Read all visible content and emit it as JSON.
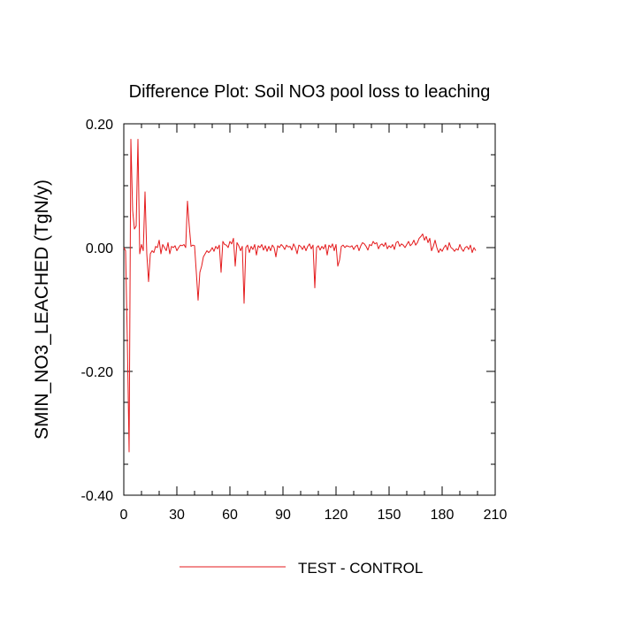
{
  "chart_data": {
    "type": "line",
    "title": "Difference Plot: Soil NO3 pool loss to leaching",
    "xlabel": "",
    "ylabel": "SMIN_NO3_LEACHED  (TgN/y)",
    "xlim": [
      0,
      210
    ],
    "ylim": [
      -0.4,
      0.2
    ],
    "xticks": [
      0,
      30,
      60,
      90,
      120,
      150,
      180,
      210
    ],
    "xtick_labels": [
      "0",
      "30",
      "60",
      "90",
      "120",
      "150",
      "180",
      "210"
    ],
    "yticks": [
      -0.4,
      -0.2,
      0.0,
      0.2
    ],
    "ytick_labels": [
      "-0.40",
      "-0.20",
      "0.00",
      "0.20"
    ],
    "grid": false,
    "legend_position": "bottom-center",
    "series": [
      {
        "name": "TEST - CONTROL",
        "color": "#e41a1c",
        "points": [
          [
            0,
            0.0
          ],
          [
            1,
            -0.005
          ],
          [
            2,
            -0.15
          ],
          [
            3,
            -0.33
          ],
          [
            4,
            0.175
          ],
          [
            5,
            0.06
          ],
          [
            6,
            0.03
          ],
          [
            7,
            0.035
          ],
          [
            8,
            0.175
          ],
          [
            9,
            -0.01
          ],
          [
            10,
            0.005
          ],
          [
            11,
            -0.005
          ],
          [
            12,
            0.09
          ],
          [
            13,
            -0.01
          ],
          [
            14,
            -0.055
          ],
          [
            15,
            -0.01
          ],
          [
            16,
            -0.005
          ],
          [
            17,
            -0.008
          ],
          [
            18,
            0.002
          ],
          [
            19,
            0.0
          ],
          [
            20,
            0.012
          ],
          [
            21,
            -0.01
          ],
          [
            22,
            0.005
          ],
          [
            23,
            0.0
          ],
          [
            24,
            -0.005
          ],
          [
            25,
            0.008
          ],
          [
            26,
            -0.01
          ],
          [
            27,
            0.002
          ],
          [
            28,
            0.0
          ],
          [
            29,
            0.003
          ],
          [
            30,
            -0.005
          ],
          [
            31,
            0.0
          ],
          [
            32,
            0.004
          ],
          [
            33,
            0.003
          ],
          [
            34,
            0.005
          ],
          [
            35,
            0.0
          ],
          [
            36,
            0.075
          ],
          [
            37,
            0.035
          ],
          [
            38,
            0.002
          ],
          [
            39,
            0.004
          ],
          [
            40,
            0.003
          ],
          [
            41,
            -0.04
          ],
          [
            42,
            -0.085
          ],
          [
            43,
            -0.04
          ],
          [
            44,
            -0.03
          ],
          [
            45,
            -0.015
          ],
          [
            46,
            -0.01
          ],
          [
            47,
            -0.005
          ],
          [
            48,
            -0.008
          ],
          [
            49,
            -0.005
          ],
          [
            50,
            0.0
          ],
          [
            51,
            -0.006
          ],
          [
            52,
            0.002
          ],
          [
            53,
            -0.002
          ],
          [
            54,
            0.004
          ],
          [
            55,
            -0.04
          ],
          [
            56,
            0.01
          ],
          [
            57,
            0.005
          ],
          [
            58,
            0.004
          ],
          [
            59,
            0.0
          ],
          [
            60,
            0.01
          ],
          [
            61,
            0.006
          ],
          [
            62,
            0.015
          ],
          [
            63,
            -0.03
          ],
          [
            64,
            0.008
          ],
          [
            65,
            0.003
          ],
          [
            66,
            -0.005
          ],
          [
            67,
            0.002
          ],
          [
            68,
            -0.09
          ],
          [
            69,
            0.0
          ],
          [
            70,
            0.004
          ],
          [
            71,
            -0.008
          ],
          [
            72,
            0.002
          ],
          [
            73,
            -0.003
          ],
          [
            74,
            0.005
          ],
          [
            75,
            -0.012
          ],
          [
            76,
            0.003
          ],
          [
            77,
            0.0
          ],
          [
            78,
            0.005
          ],
          [
            79,
            -0.004
          ],
          [
            80,
            0.003
          ],
          [
            81,
            -0.006
          ],
          [
            82,
            0.002
          ],
          [
            83,
            -0.005
          ],
          [
            84,
            0.004
          ],
          [
            85,
            0.0
          ],
          [
            86,
            -0.015
          ],
          [
            87,
            0.003
          ],
          [
            88,
            0.0
          ],
          [
            89,
            0.005
          ],
          [
            90,
            0.002
          ],
          [
            91,
            -0.003
          ],
          [
            92,
            0.004
          ],
          [
            93,
            0.001
          ],
          [
            94,
            0.002
          ],
          [
            95,
            -0.004
          ],
          [
            96,
            0.006
          ],
          [
            97,
            0.0
          ],
          [
            98,
            -0.01
          ],
          [
            99,
            0.004
          ],
          [
            100,
            0.002
          ],
          [
            101,
            -0.003
          ],
          [
            102,
            0.003
          ],
          [
            103,
            -0.005
          ],
          [
            104,
            0.002
          ],
          [
            105,
            0.006
          ],
          [
            106,
            -0.002
          ],
          [
            107,
            0.004
          ],
          [
            108,
            -0.065
          ],
          [
            109,
            0.0
          ],
          [
            110,
            0.003
          ],
          [
            111,
            -0.004
          ],
          [
            112,
            0.002
          ],
          [
            113,
            -0.002
          ],
          [
            114,
            0.005
          ],
          [
            115,
            -0.012
          ],
          [
            116,
            0.004
          ],
          [
            117,
            0.0
          ],
          [
            118,
            0.006
          ],
          [
            119,
            -0.005
          ],
          [
            120,
            0.005
          ],
          [
            121,
            -0.03
          ],
          [
            122,
            -0.02
          ],
          [
            123,
            0.002
          ],
          [
            124,
            0.004
          ],
          [
            125,
            0.0
          ],
          [
            126,
            0.003
          ],
          [
            127,
            0.002
          ],
          [
            128,
            0.001
          ],
          [
            129,
            0.003
          ],
          [
            130,
            -0.003
          ],
          [
            131,
            0.002
          ],
          [
            132,
            0.004
          ],
          [
            133,
            -0.005
          ],
          [
            134,
            0.003
          ],
          [
            135,
            0.008
          ],
          [
            136,
            0.006
          ],
          [
            137,
            0.002
          ],
          [
            138,
            -0.004
          ],
          [
            139,
            0.005
          ],
          [
            140,
            0.003
          ],
          [
            141,
            0.01
          ],
          [
            142,
            0.006
          ],
          [
            143,
            0.008
          ],
          [
            144,
            -0.002
          ],
          [
            145,
            0.004
          ],
          [
            146,
            0.006
          ],
          [
            147,
            0.002
          ],
          [
            148,
            0.008
          ],
          [
            149,
            -0.002
          ],
          [
            150,
            0.003
          ],
          [
            151,
            0.0
          ],
          [
            152,
            0.005
          ],
          [
            153,
            -0.003
          ],
          [
            154,
            0.008
          ],
          [
            155,
            0.01
          ],
          [
            156,
            0.002
          ],
          [
            157,
            0.006
          ],
          [
            158,
            0.004
          ],
          [
            159,
            0.0
          ],
          [
            160,
            0.005
          ],
          [
            161,
            0.01
          ],
          [
            162,
            0.003
          ],
          [
            163,
            0.006
          ],
          [
            164,
            0.012
          ],
          [
            165,
            0.004
          ],
          [
            166,
            0.008
          ],
          [
            167,
            0.015
          ],
          [
            168,
            0.018
          ],
          [
            169,
            0.022
          ],
          [
            170,
            0.012
          ],
          [
            171,
            0.018
          ],
          [
            172,
            0.008
          ],
          [
            173,
            0.015
          ],
          [
            174,
            -0.005
          ],
          [
            175,
            0.002
          ],
          [
            176,
            0.012
          ],
          [
            177,
            0.0
          ],
          [
            178,
            -0.008
          ],
          [
            179,
            -0.002
          ],
          [
            180,
            -0.006
          ],
          [
            181,
            0.0
          ],
          [
            182,
            0.004
          ],
          [
            183,
            -0.004
          ],
          [
            184,
            0.008
          ],
          [
            185,
            0.0
          ],
          [
            186,
            -0.002
          ],
          [
            187,
            -0.006
          ],
          [
            188,
            -0.002
          ],
          [
            189,
            -0.004
          ],
          [
            190,
            0.005
          ],
          [
            191,
            -0.002
          ],
          [
            192,
            -0.006
          ],
          [
            193,
            0.0
          ],
          [
            194,
            0.002
          ],
          [
            195,
            -0.003
          ],
          [
            196,
            0.004
          ],
          [
            197,
            -0.008
          ],
          [
            198,
            0.0
          ],
          [
            199,
            -0.005
          ]
        ]
      }
    ]
  }
}
